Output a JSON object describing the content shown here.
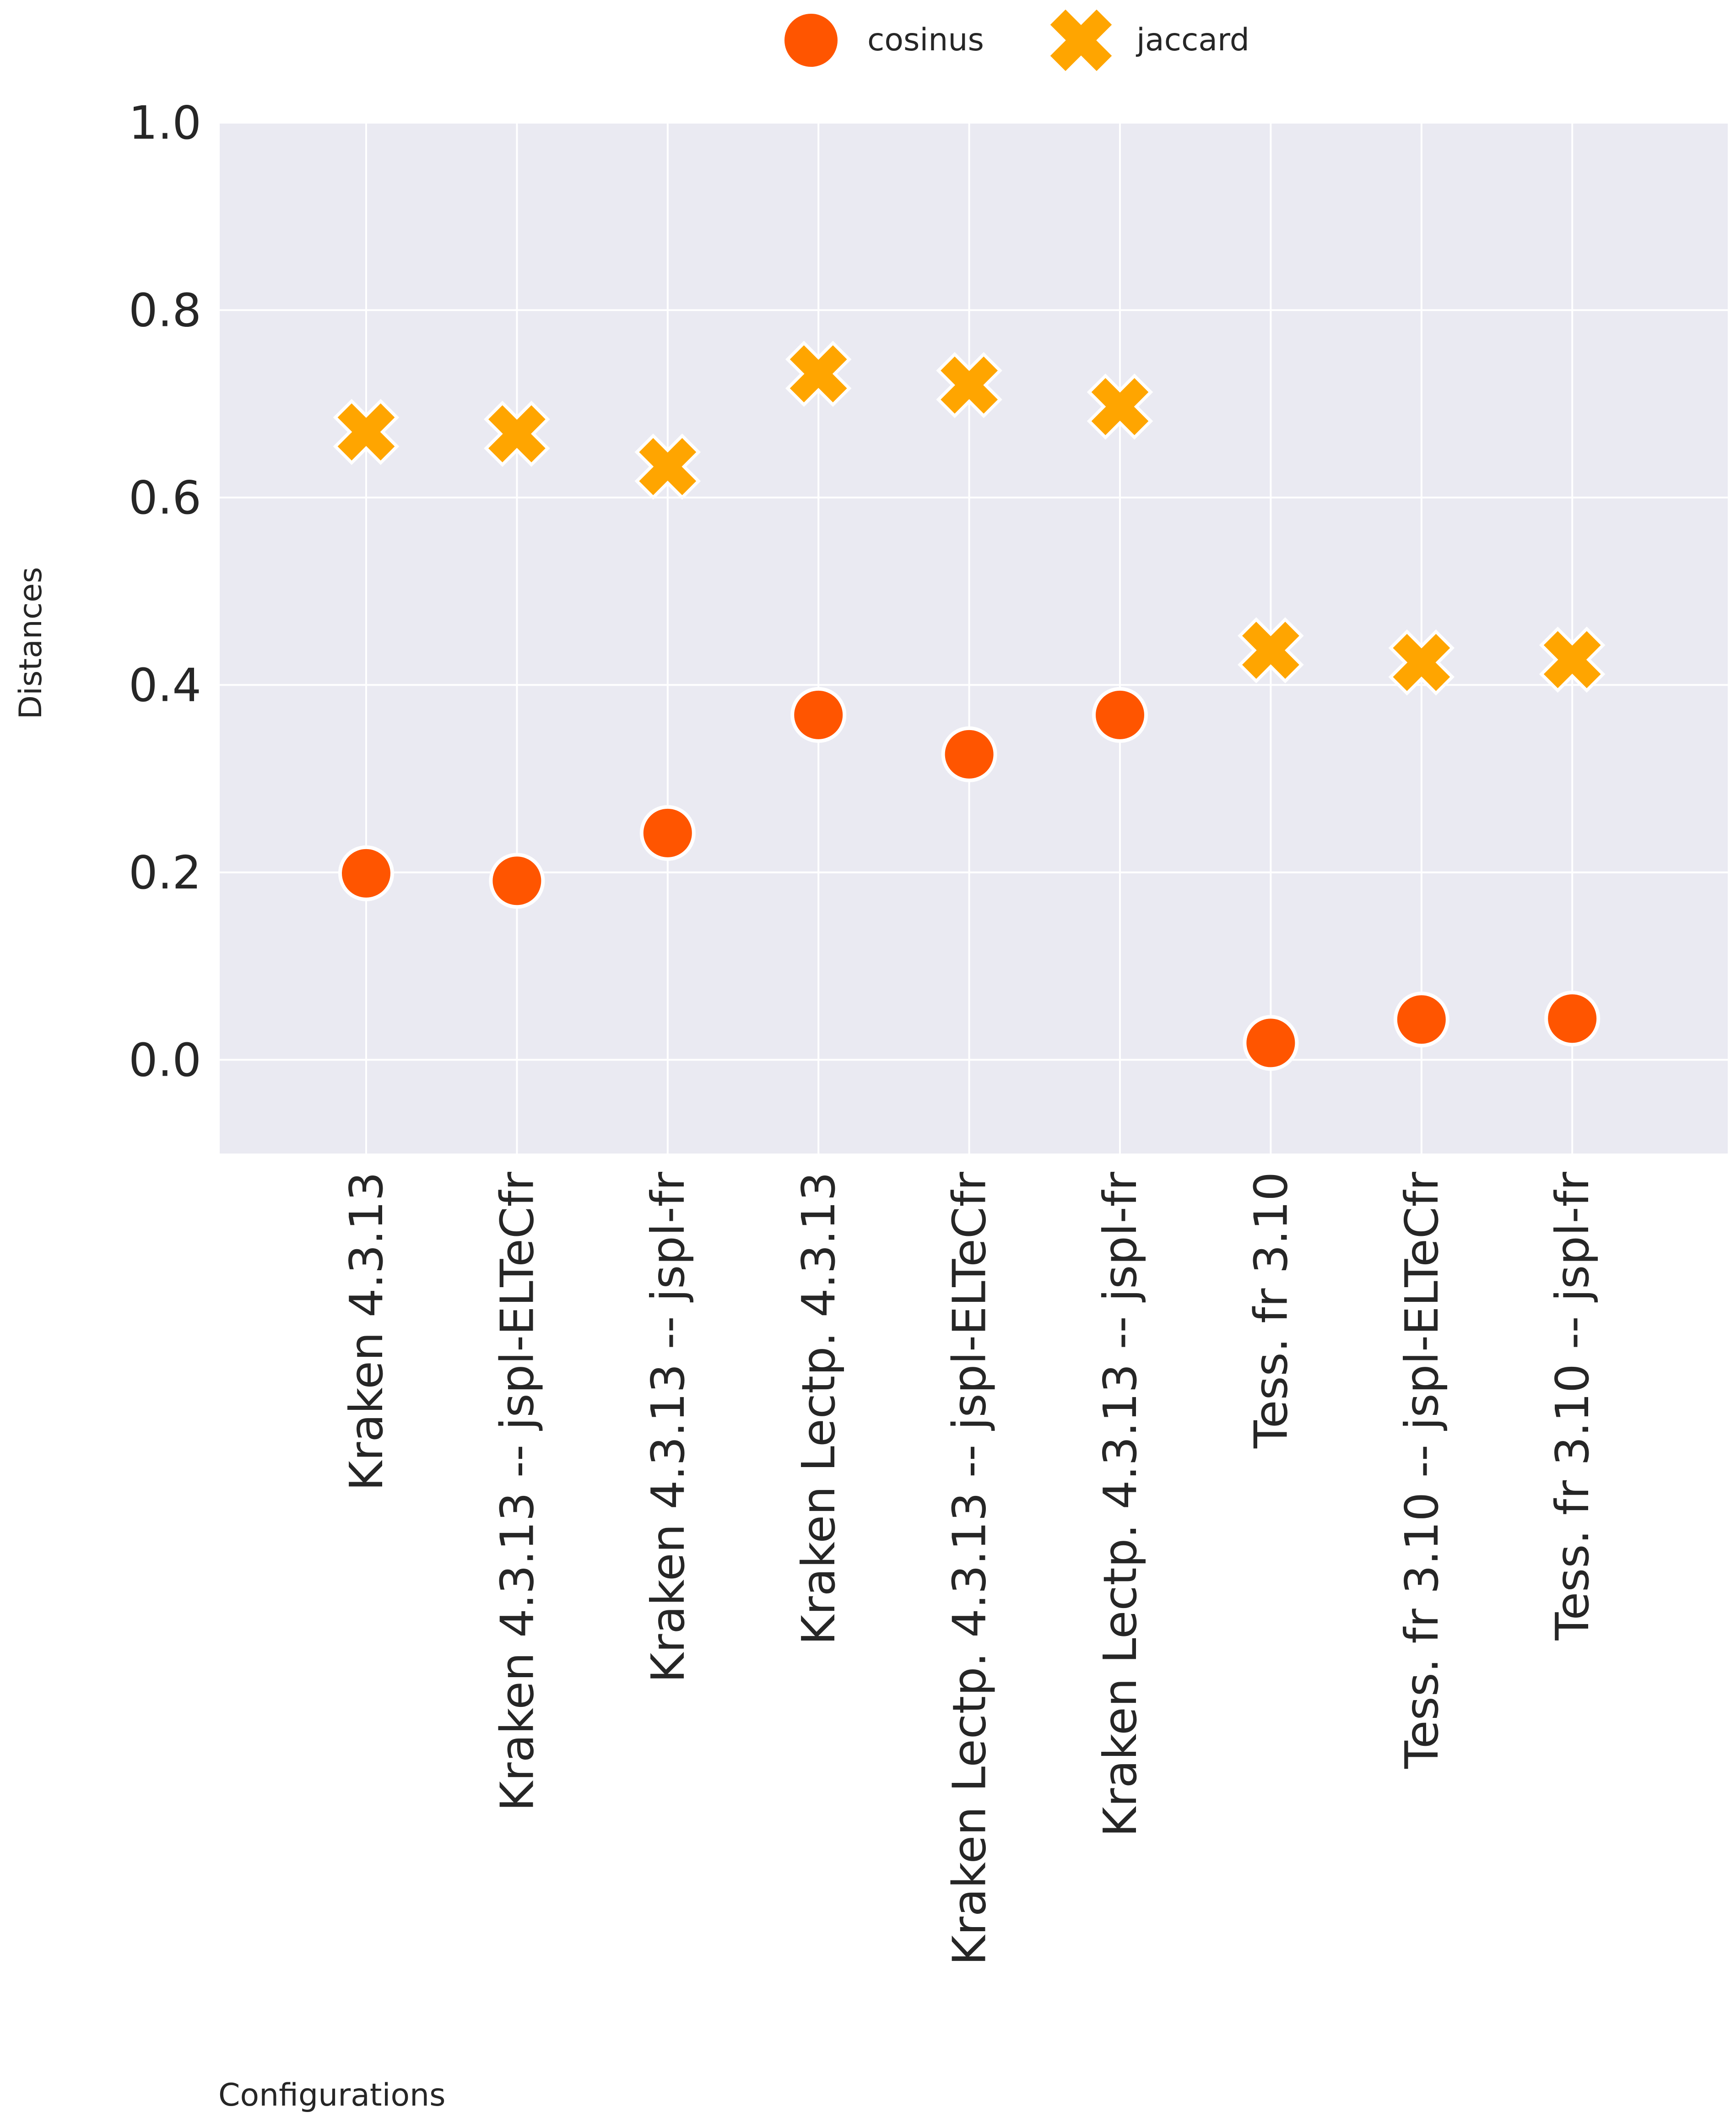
{
  "chart_data": {
    "type": "scatter",
    "categories": [
      "Kraken 4.3.13",
      "Kraken 4.3.13 -- jspl-ELTeCfr",
      "Kraken 4.3.13 -- jspl-fr",
      "Kraken Lectp. 4.3.13",
      "Kraken Lectp. 4.3.13 -- jspl-ELTeCfr",
      "Kraken Lectp. 4.3.13 -- jspl-fr",
      "Tess. fr 3.10",
      "Tess. fr 3.10 -- jspl-ELTeCfr",
      "Tess. fr 3.10 -- jspl-fr"
    ],
    "series": [
      {
        "name": "cosinus",
        "marker": "circle",
        "color": "#ff5500",
        "values": [
          0.199,
          0.191,
          0.242,
          0.368,
          0.326,
          0.368,
          0.018,
          0.043,
          0.044
        ]
      },
      {
        "name": "jaccard",
        "marker": "x",
        "color": "#ffa500",
        "values": [
          0.67,
          0.668,
          0.633,
          0.732,
          0.72,
          0.697,
          0.437,
          0.424,
          0.427
        ]
      }
    ],
    "title": "",
    "xlabel": "Configurations",
    "ylabel": "Distances",
    "ylim": [
      -0.1,
      1.0
    ],
    "yticks": [
      "1.0",
      "0.8",
      "0.6",
      "0.4",
      "0.2",
      "0.0"
    ],
    "ytick_values": [
      1.0,
      0.8,
      0.6,
      0.4,
      0.2,
      0.0
    ],
    "grid": true,
    "legend_position": "top-center",
    "background": "#eaeaf2",
    "gridline_color": "#ffffff"
  }
}
